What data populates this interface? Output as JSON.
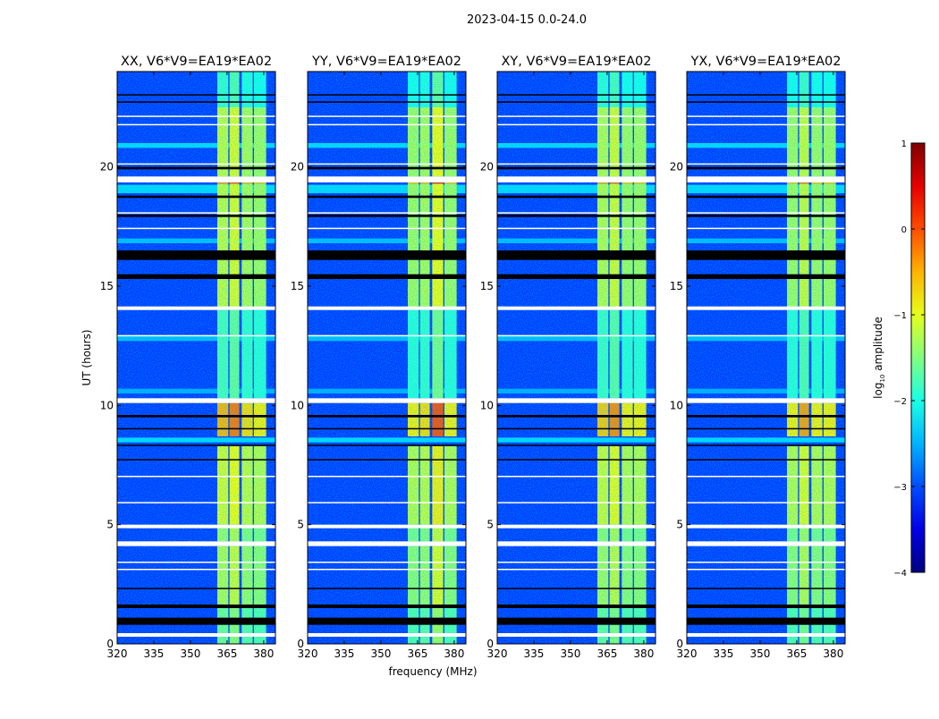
{
  "chart_data": {
    "type": "heatmap",
    "title": "2023-04-15 0.0-24.0",
    "xlabel": "frequency (MHz)",
    "ylabel": "UT (hours)",
    "xlim": [
      320,
      384.8
    ],
    "ylim": [
      0,
      24
    ],
    "xticks": [
      320,
      335,
      350,
      365,
      380
    ],
    "yticks": [
      0,
      5,
      10,
      15,
      20
    ],
    "panels": [
      {
        "title": "XX, V6*V9=EA19*EA02",
        "band_boost": [
          0.3,
          0.6,
          0.1,
          0.0
        ]
      },
      {
        "title": "YY, V6*V9=EA19*EA02",
        "band_boost": [
          0.0,
          0.1,
          0.8,
          0.0
        ]
      },
      {
        "title": "XY, V6*V9=EA19*EA02",
        "band_boost": [
          0.2,
          0.5,
          0.0,
          0.0
        ]
      },
      {
        "title": "YX, V6*V9=EA19*EA02",
        "band_boost": [
          0.0,
          0.4,
          0.0,
          0.0
        ]
      }
    ],
    "background_log_amp": -3.1,
    "band_columns_mhz": [
      [
        361,
        365.5
      ],
      [
        366,
        370
      ],
      [
        371,
        375.5
      ],
      [
        376,
        381
      ]
    ],
    "band_segments": [
      {
        "hours": [
          0,
          1.6
        ],
        "value": -1.7
      },
      {
        "hours": [
          1.6,
          4.1
        ],
        "value": -1.4
      },
      {
        "hours": [
          4.3,
          4.9
        ],
        "value": -1.5
      },
      {
        "hours": [
          5.0,
          8.3
        ],
        "value": -1.2
      },
      {
        "hours": [
          8.7,
          10.1
        ],
        "value": -0.8
      },
      {
        "hours": [
          10.3,
          14.0
        ],
        "value": -1.9
      },
      {
        "hours": [
          14.1,
          19.3
        ],
        "value": -1.3
      },
      {
        "hours": [
          19.3,
          19.6
        ],
        "value": -0.6
      },
      {
        "hours": [
          19.6,
          22.5
        ],
        "value": -1.3
      },
      {
        "hours": [
          22.5,
          24
        ],
        "value": -2.0
      }
    ],
    "background_stripes": [
      {
        "hours": [
          18.9,
          19.25
        ],
        "value": -2.1
      },
      {
        "hours": [
          20.8,
          21.0
        ],
        "value": -2.1
      },
      {
        "hours": [
          16.8,
          17.0
        ],
        "value": -2.3
      },
      {
        "hours": [
          12.7,
          12.95
        ],
        "value": -2.3
      },
      {
        "hours": [
          10.5,
          10.7
        ],
        "value": -2.4
      },
      {
        "hours": [
          8.45,
          8.65
        ],
        "value": -2.1
      }
    ],
    "flagged_hours": [
      [
        19.35,
        19.6
      ],
      [
        14.0,
        14.15
      ],
      [
        10.1,
        10.3
      ],
      [
        4.85,
        5.0
      ],
      [
        4.1,
        4.3
      ],
      [
        0.3,
        0.45
      ],
      [
        21.75,
        21.8
      ],
      [
        22.1,
        22.15
      ],
      [
        20.1,
        20.15
      ],
      [
        12.9,
        12.95
      ],
      [
        18.05,
        18.1
      ],
      [
        17.4,
        17.45
      ],
      [
        3.4,
        3.45
      ],
      [
        3.1,
        3.15
      ],
      [
        5.9,
        5.95
      ],
      [
        7.0,
        7.05
      ]
    ],
    "dropout_hours": [
      [
        19.9,
        20.0
      ],
      [
        18.7,
        18.8
      ],
      [
        17.9,
        18.0
      ],
      [
        16.1,
        16.5
      ],
      [
        15.3,
        15.5
      ],
      [
        9.5,
        9.6
      ],
      [
        9.0,
        9.05
      ],
      [
        8.3,
        8.35
      ],
      [
        7.7,
        7.75
      ],
      [
        2.3,
        2.35
      ],
      [
        1.5,
        1.65
      ],
      [
        0.8,
        1.1
      ],
      [
        23.0,
        23.05
      ],
      [
        22.7,
        22.75
      ]
    ],
    "colorbar": {
      "label": "log",
      "label_sub": "10",
      "label_rest": " amplitude",
      "range": [
        -4,
        1
      ],
      "ticks": [
        "1",
        "0",
        "−1",
        "−2",
        "−3",
        "−4"
      ],
      "colormap": "jet"
    }
  }
}
